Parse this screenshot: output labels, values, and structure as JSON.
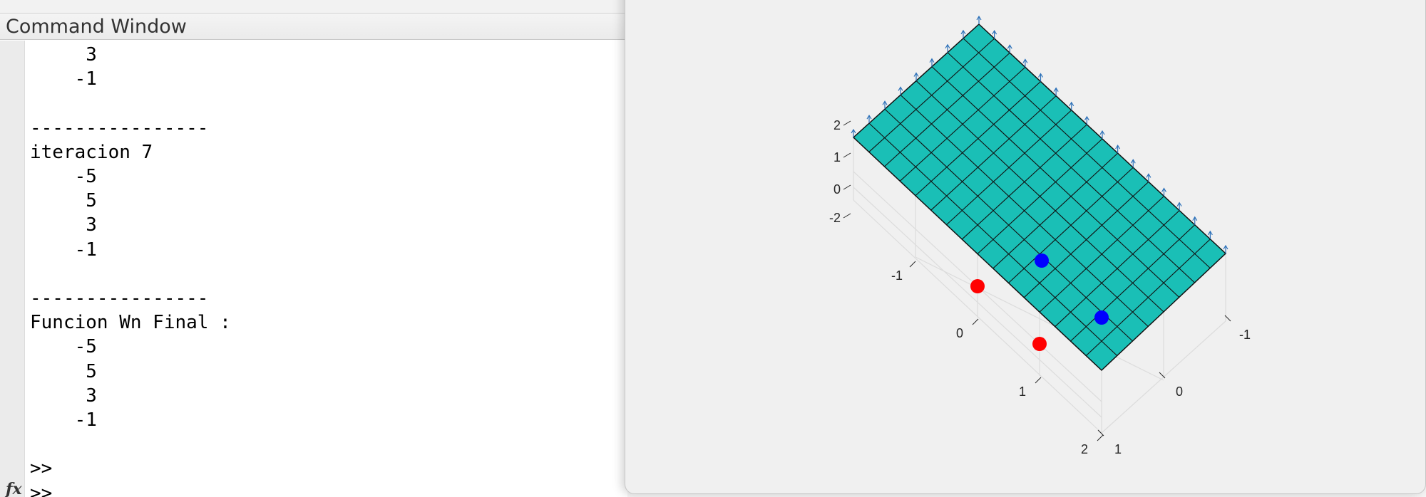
{
  "command_window": {
    "title": "Command Window",
    "lines": [
      "     3",
      "    -1",
      "",
      "----------------",
      "iteracion 7",
      "    -5",
      "     5",
      "     3",
      "    -1",
      "",
      "----------------",
      "Funcion Wn Final :",
      "    -5",
      "     5",
      "     3",
      "    -1",
      "",
      ">>",
      ">>"
    ],
    "prompt_icon": "fx-icon"
  },
  "figure": {
    "surface_color": "#1abfb6",
    "grid_lines_per_side": 8,
    "z_ticks": [
      "2",
      "1",
      "0",
      "-2"
    ],
    "x_ticks": [
      "-1",
      "0",
      "1",
      "2"
    ],
    "y_ticks": [
      "-1",
      "0",
      "1"
    ],
    "points": [
      {
        "color": "#ff0000",
        "label": "red-point-1"
      },
      {
        "color": "#ff0000",
        "label": "red-point-2"
      },
      {
        "color": "#0000ff",
        "label": "blue-point-1"
      },
      {
        "color": "#0000ff",
        "label": "blue-point-2"
      }
    ]
  }
}
